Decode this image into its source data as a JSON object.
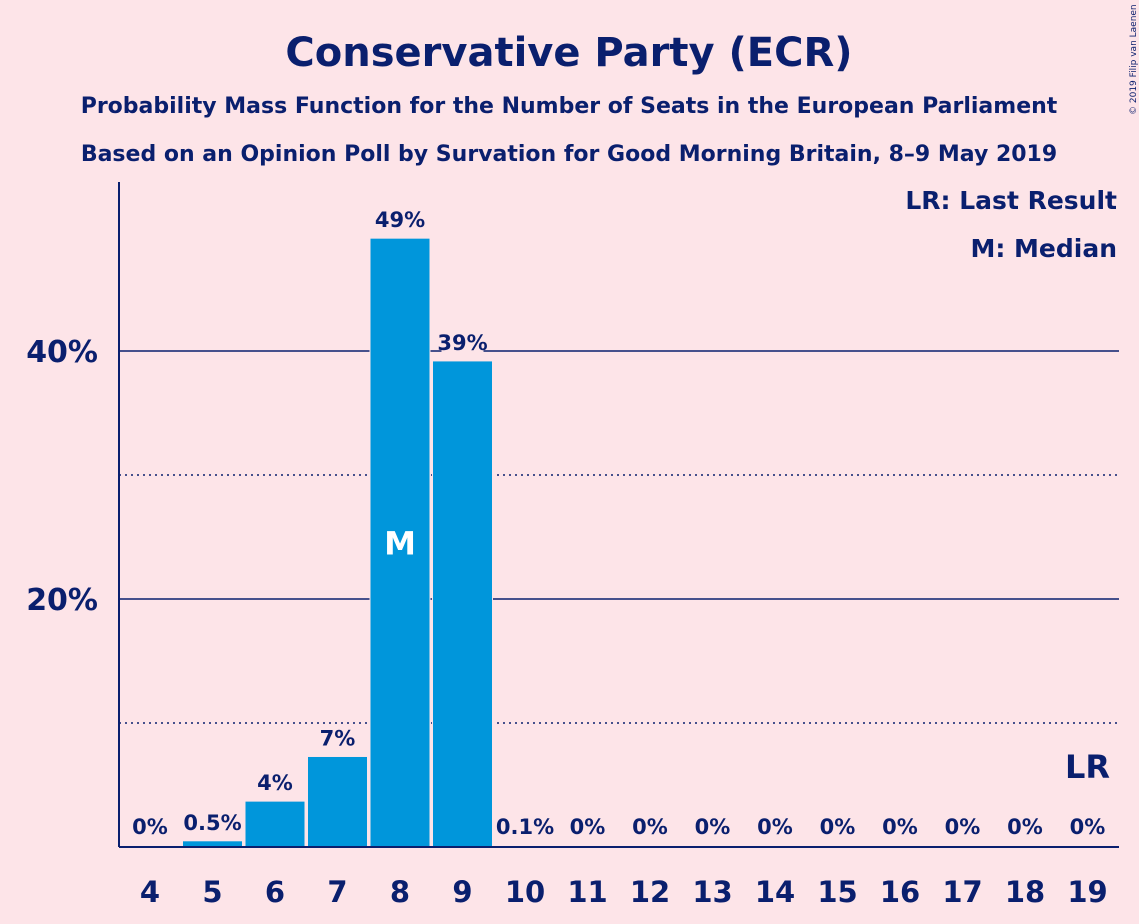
{
  "chart_data": {
    "type": "bar",
    "title": "Conservative Party (ECR)",
    "subtitle1": "Probability Mass Function for the Number of Seats in the European Parliament",
    "subtitle2": "Based on an Opinion Poll by Survation for Good Morning Britain, 8–9 May 2019",
    "categories": [
      "4",
      "5",
      "6",
      "7",
      "8",
      "9",
      "10",
      "11",
      "12",
      "13",
      "14",
      "15",
      "16",
      "17",
      "18",
      "19"
    ],
    "values": [
      0,
      0.5,
      3.7,
      7.3,
      49.1,
      39.2,
      0.1,
      0,
      0,
      0,
      0,
      0,
      0,
      0,
      0,
      0
    ],
    "labels": [
      "0%",
      "0.5%",
      "4%",
      "7%",
      "49%",
      "39%",
      "0.1%",
      "0%",
      "0%",
      "0%",
      "0%",
      "0%",
      "0%",
      "0%",
      "0%",
      "0%"
    ],
    "ylim": [
      0,
      53.5
    ],
    "yticks": [
      20,
      40
    ],
    "ytick_labels": [
      "20%",
      "40%"
    ],
    "minor_gridlines": [
      10,
      30
    ],
    "median_category": "8",
    "median_marker": "M",
    "last_result_category": "19",
    "last_result_marker": "LR",
    "legend": [
      "LR: Last Result",
      "M: Median"
    ],
    "legend_position": "top-right",
    "bar_color": "#0096db",
    "axis_color": "#0a1f6e",
    "background_color": "#fde4e8"
  },
  "copyright": "© 2019 Filip van Laenen"
}
